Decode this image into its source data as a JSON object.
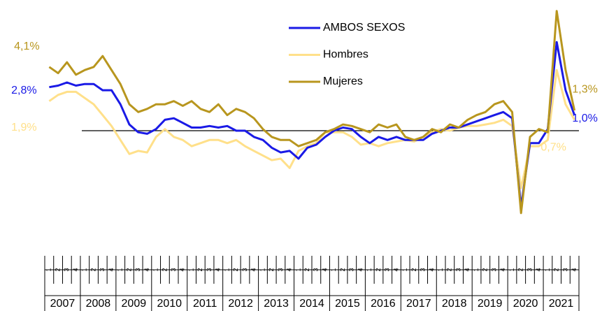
{
  "chart_data": {
    "type": "line",
    "categories": [
      "1",
      "2",
      "3",
      "4",
      "1",
      "2",
      "3",
      "4",
      "1",
      "2",
      "3",
      "4",
      "1",
      "2",
      "3",
      "4",
      "1",
      "2",
      "3",
      "4",
      "1",
      "2",
      "3",
      "4",
      "1",
      "2",
      "3",
      "4",
      "1",
      "2",
      "3",
      "4",
      "1",
      "2",
      "3",
      "4",
      "1",
      "2",
      "3",
      "4",
      "1",
      "2",
      "3",
      "4",
      "1",
      "2",
      "3",
      "4",
      "1",
      "2",
      "3",
      "4",
      "1",
      "2",
      "3",
      "4",
      "1",
      "2",
      "3",
      "4"
    ],
    "year_labels": [
      "2007",
      "2008",
      "2009",
      "2010",
      "2011",
      "2012",
      "2013",
      "2014",
      "2015",
      "2016",
      "2017",
      "2018",
      "2019",
      "2020",
      "2021"
    ],
    "ylim": [
      -5.8,
      8.0
    ],
    "reference_line": 0,
    "legend": "top-center",
    "series": [
      {
        "name": "AMBOS SEXOS",
        "color": "#1a1ae6",
        "values": [
          2.8,
          2.9,
          3.1,
          2.9,
          3.0,
          3.0,
          2.6,
          2.6,
          1.7,
          0.4,
          -0.1,
          -0.2,
          0.1,
          0.7,
          0.8,
          0.5,
          0.2,
          0.2,
          0.3,
          0.2,
          0.3,
          0.0,
          0.0,
          -0.4,
          -0.6,
          -1.1,
          -1.4,
          -1.3,
          -1.8,
          -1.1,
          -0.9,
          -0.4,
          0.0,
          0.2,
          0.1,
          -0.4,
          -0.8,
          -0.4,
          -0.6,
          -0.4,
          -0.6,
          -0.6,
          -0.6,
          -0.2,
          0.0,
          0.2,
          0.2,
          0.4,
          0.6,
          0.8,
          1.0,
          1.2,
          0.8,
          -4.9,
          -0.8,
          -0.8,
          0.1,
          5.7,
          2.6,
          1.0
        ],
        "value_labels": [
          "2,8%",
          null,
          null,
          null,
          null,
          null,
          null,
          null,
          null,
          null,
          null,
          null,
          null,
          null,
          null,
          null,
          null,
          null,
          null,
          null,
          null,
          null,
          null,
          null,
          null,
          null,
          null,
          null,
          null,
          null,
          null,
          null,
          null,
          null,
          null,
          null,
          null,
          null,
          null,
          null,
          null,
          null,
          null,
          null,
          null,
          null,
          null,
          null,
          null,
          null,
          null,
          null,
          null,
          null,
          null,
          null,
          null,
          null,
          null,
          "1,0%"
        ]
      },
      {
        "name": "Hombres",
        "color": "#ffe08a",
        "values": [
          1.9,
          2.3,
          2.5,
          2.5,
          2.1,
          1.7,
          1.0,
          0.3,
          -0.6,
          -1.5,
          -1.3,
          -1.4,
          -0.4,
          0.1,
          -0.4,
          -0.6,
          -1.0,
          -0.8,
          -0.6,
          -0.6,
          -0.8,
          -0.6,
          -1.0,
          -1.3,
          -1.6,
          -1.9,
          -1.8,
          -2.4,
          -1.3,
          -1.0,
          -0.8,
          -0.1,
          -0.1,
          -0.1,
          -0.4,
          -0.9,
          -0.8,
          -1.0,
          -0.8,
          -0.7,
          -0.6,
          -0.7,
          -0.4,
          -0.1,
          0.1,
          0.0,
          0.2,
          0.3,
          0.3,
          0.4,
          0.5,
          0.7,
          0.3,
          -3.7,
          -1.0,
          -1.0,
          -0.6,
          3.9,
          1.7,
          0.7
        ],
        "value_labels": [
          "1,9%",
          null,
          null,
          null,
          null,
          null,
          null,
          null,
          null,
          null,
          null,
          null,
          null,
          null,
          null,
          null,
          null,
          null,
          null,
          null,
          null,
          null,
          null,
          null,
          null,
          null,
          null,
          null,
          null,
          null,
          null,
          null,
          null,
          null,
          null,
          null,
          null,
          null,
          null,
          null,
          null,
          null,
          null,
          null,
          null,
          null,
          null,
          null,
          null,
          null,
          null,
          null,
          null,
          null,
          null,
          null,
          null,
          null,
          null,
          "0,7%"
        ]
      },
      {
        "name": "Mujeres",
        "color": "#b8961e",
        "values": [
          4.1,
          3.7,
          4.4,
          3.6,
          3.9,
          4.1,
          4.8,
          3.9,
          3.0,
          1.7,
          1.2,
          1.4,
          1.7,
          1.7,
          1.9,
          1.6,
          1.9,
          1.4,
          1.2,
          1.7,
          1.0,
          1.4,
          1.2,
          0.8,
          0.1,
          -0.4,
          -0.6,
          -0.6,
          -1.0,
          -0.8,
          -0.6,
          -0.1,
          0.1,
          0.4,
          0.3,
          0.1,
          -0.1,
          0.4,
          0.2,
          0.4,
          -0.4,
          -0.6,
          -0.4,
          0.1,
          -0.1,
          0.4,
          0.2,
          0.7,
          1.0,
          1.2,
          1.7,
          1.9,
          1.2,
          -5.3,
          -0.4,
          0.1,
          -0.1,
          7.7,
          3.9,
          1.3
        ],
        "value_labels": [
          "4,1%",
          null,
          null,
          null,
          null,
          null,
          null,
          null,
          null,
          null,
          null,
          null,
          null,
          null,
          null,
          null,
          null,
          null,
          null,
          null,
          null,
          null,
          null,
          null,
          null,
          null,
          null,
          null,
          null,
          null,
          null,
          null,
          null,
          null,
          null,
          null,
          null,
          null,
          null,
          null,
          null,
          null,
          null,
          null,
          null,
          null,
          null,
          null,
          null,
          null,
          null,
          null,
          null,
          null,
          null,
          null,
          null,
          null,
          null,
          "1,3%"
        ]
      }
    ]
  }
}
